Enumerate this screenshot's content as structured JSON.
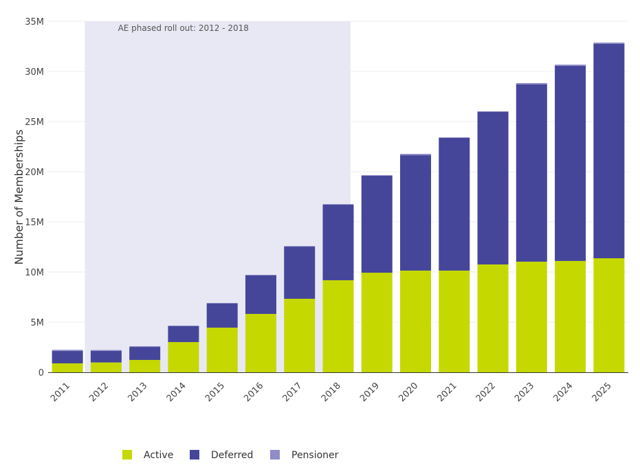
{
  "chart_data": {
    "type": "bar",
    "stacked": true,
    "title": "",
    "xlabel": "",
    "ylabel": "Number of Memberships",
    "ylim": [
      0,
      35000000
    ],
    "yticks": [
      0,
      5000000,
      10000000,
      15000000,
      20000000,
      25000000,
      30000000,
      35000000
    ],
    "ytick_labels": [
      "0",
      "5M",
      "10M",
      "15M",
      "20M",
      "25M",
      "30M",
      "35M"
    ],
    "categories": [
      "2011",
      "2012",
      "2013",
      "2014",
      "2015",
      "2016",
      "2017",
      "2018",
      "2019",
      "2020",
      "2021",
      "2022",
      "2023",
      "2024",
      "2025"
    ],
    "series": [
      {
        "name": "Active",
        "color": "#c5d800",
        "values": [
          0.89,
          0.98,
          1.23,
          3.01,
          4.45,
          5.82,
          7.33,
          9.18,
          9.93,
          10.14,
          10.14,
          10.75,
          11.03,
          11.1,
          11.37
        ]
      },
      {
        "name": "Deferred",
        "color": "#45469a",
        "values": [
          1.23,
          1.16,
          1.3,
          1.58,
          2.4,
          3.84,
          5.2,
          7.53,
          9.66,
          11.5,
          13.24,
          15.21,
          17.67,
          19.45,
          21.37
        ]
      },
      {
        "name": "Pensioner",
        "color": "#8f8cc8",
        "values": [
          0.12,
          0.08,
          0.07,
          0.07,
          0.07,
          0.06,
          0.06,
          0.06,
          0.07,
          0.14,
          0.05,
          0.07,
          0.14,
          0.13,
          0.14
        ]
      }
    ],
    "value_unit": "millions",
    "annotation": {
      "text": "AE phased roll out: 2012 - 2018",
      "shade_color": "#e8e8f4"
    },
    "grid": true,
    "legend_position": "bottom"
  }
}
